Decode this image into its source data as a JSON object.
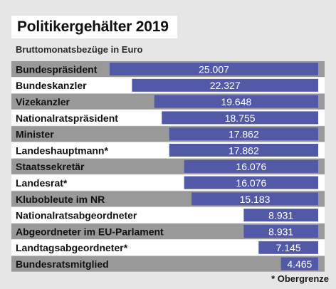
{
  "title": "Politikergehälter 2019",
  "subtitle": "Bruttomonatsbezüge in Euro",
  "footnote": "* Obergrenze",
  "colors": {
    "bar": "#525aa8",
    "row_dark": "#999999",
    "row_light": "#ffffff",
    "bar_text": "#ffffff",
    "label_text": "#111111",
    "background": "#e6e6e6"
  },
  "chart_data": {
    "type": "bar",
    "orientation": "horizontal",
    "title": "Politikergehälter 2019",
    "subtitle": "Bruttomonatsbezüge in Euro",
    "categories": [
      "Bundespräsident",
      "Bundeskanzler",
      "Vizekanzler",
      "Nationalratspräsident",
      "Minister",
      "Landeshauptmann*",
      "Staatssekretär",
      "Landesrat*",
      "Klubobleute im NR",
      "Nationalratsabgeordneter",
      "Abgeordneter im EU-Parlament",
      "Landtagsabgeordneter*",
      "Bundesratsmitglied"
    ],
    "values": [
      25007,
      22327,
      19648,
      18755,
      17862,
      17862,
      16076,
      16076,
      15183,
      8931,
      8931,
      7145,
      4465
    ],
    "value_labels": [
      "25.007",
      "22.327",
      "19.648",
      "18.755",
      "17.862",
      "17.862",
      "16.076",
      "16.076",
      "15.183",
      "8.931",
      "8.931",
      "7.145",
      "4.465"
    ],
    "xlabel": "",
    "ylabel": "",
    "xlim": [
      0,
      25007
    ],
    "grid": false,
    "legend": "none"
  }
}
